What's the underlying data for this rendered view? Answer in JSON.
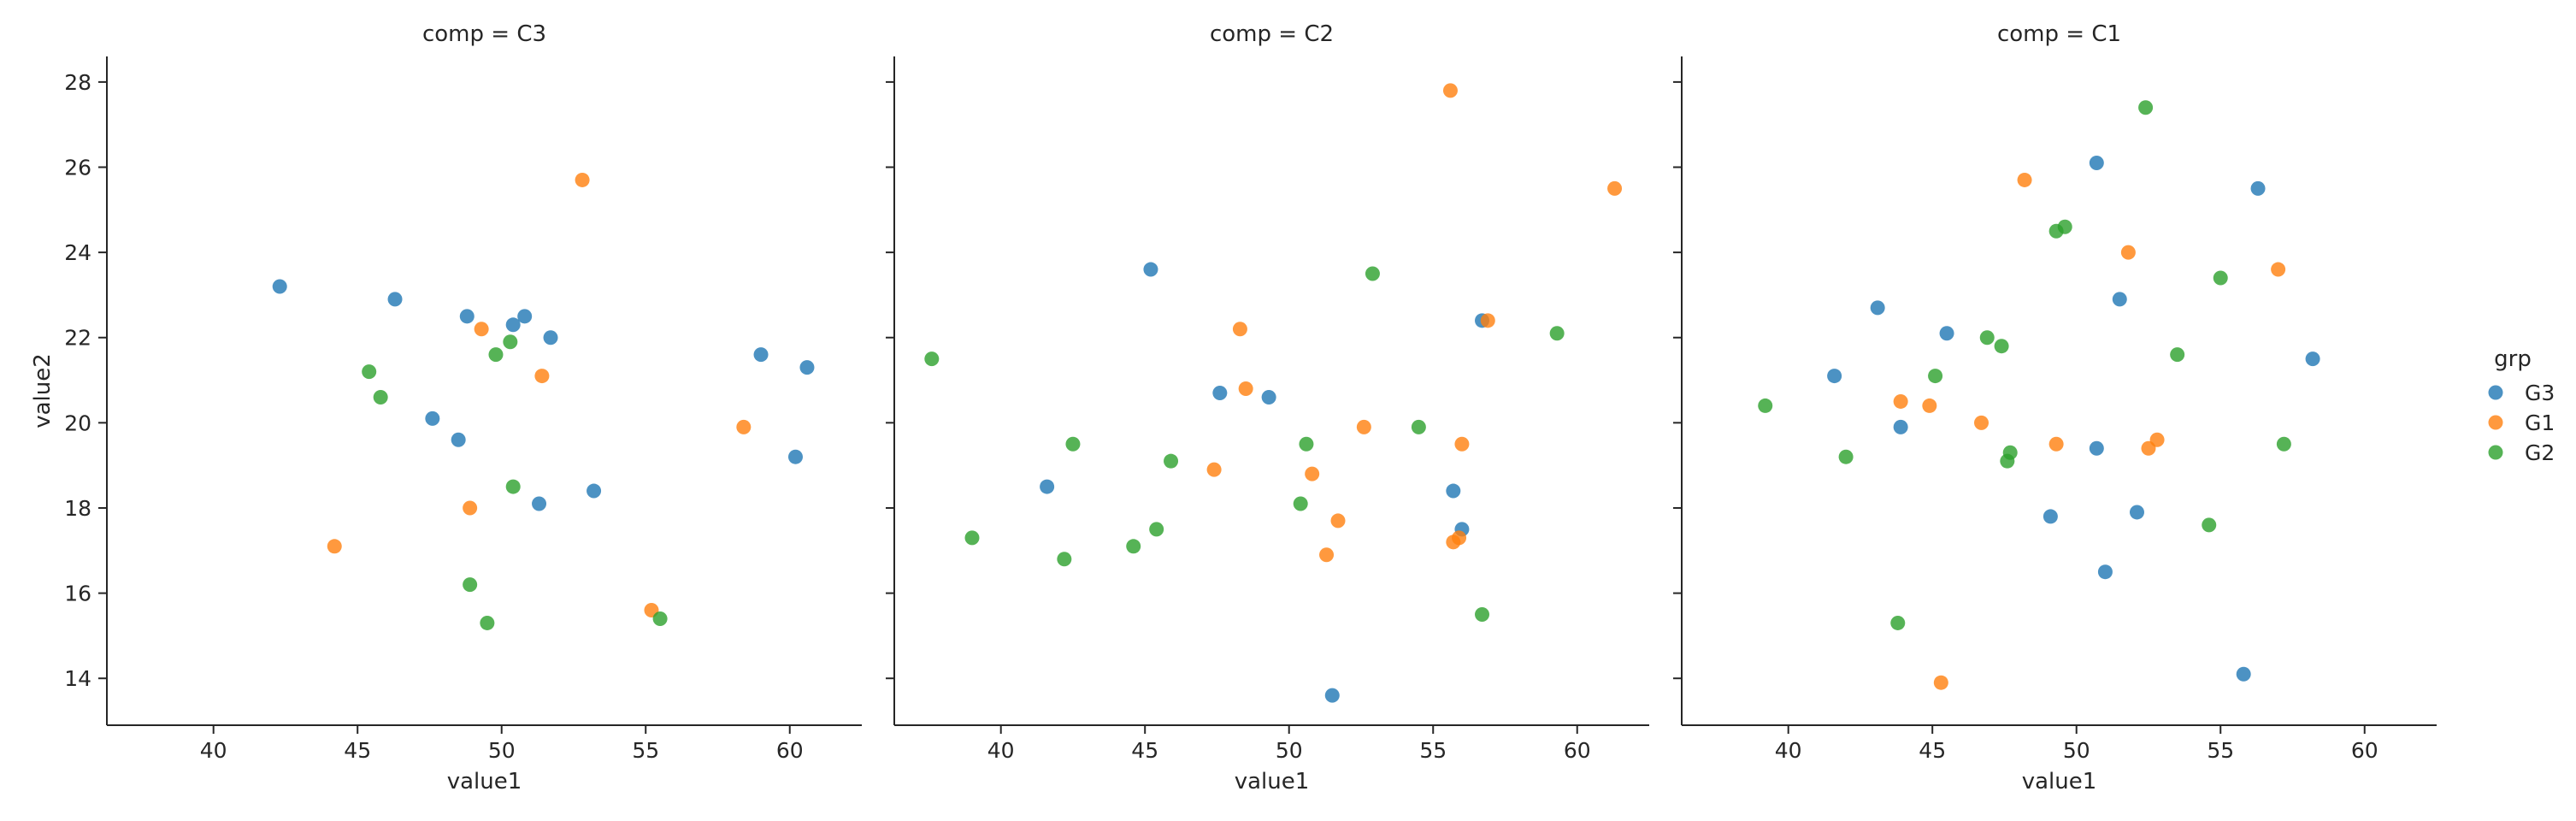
{
  "legend": {
    "title": "grp",
    "entries": [
      {
        "name": "G3",
        "color": "#1f77b4"
      },
      {
        "name": "G1",
        "color": "#ff7f0e"
      },
      {
        "name": "G2",
        "color": "#2ca02c"
      }
    ]
  },
  "chart_data": [
    {
      "type": "scatter",
      "title": "comp = C3",
      "xlabel": "value1",
      "ylabel": "value2",
      "xlim": [
        36.3,
        62.5
      ],
      "ylim": [
        12.9,
        28.6
      ],
      "xticks": [
        40,
        45,
        50,
        55,
        60
      ],
      "yticks": [
        14,
        16,
        18,
        20,
        22,
        24,
        26,
        28
      ],
      "grid": false,
      "series": [
        {
          "name": "G3",
          "color": "#1f77b4",
          "points": [
            [
              42.3,
              23.2
            ],
            [
              46.3,
              22.9
            ],
            [
              47.6,
              20.1
            ],
            [
              48.5,
              19.6
            ],
            [
              48.8,
              22.5
            ],
            [
              50.4,
              22.3
            ],
            [
              50.8,
              22.5
            ],
            [
              51.3,
              18.1
            ],
            [
              51.7,
              22.0
            ],
            [
              53.2,
              18.4
            ],
            [
              59.0,
              21.6
            ],
            [
              60.2,
              19.2
            ],
            [
              60.6,
              21.3
            ]
          ]
        },
        {
          "name": "G1",
          "color": "#ff7f0e",
          "points": [
            [
              44.2,
              17.1
            ],
            [
              48.9,
              18.0
            ],
            [
              49.3,
              22.2
            ],
            [
              51.4,
              21.1
            ],
            [
              52.8,
              25.7
            ],
            [
              55.2,
              15.6
            ],
            [
              58.4,
              19.9
            ]
          ]
        },
        {
          "name": "G2",
          "color": "#2ca02c",
          "points": [
            [
              45.4,
              21.2
            ],
            [
              45.8,
              20.6
            ],
            [
              48.9,
              16.2
            ],
            [
              49.5,
              15.3
            ],
            [
              49.8,
              21.6
            ],
            [
              50.3,
              21.9
            ],
            [
              50.4,
              18.5
            ],
            [
              55.5,
              15.4
            ]
          ]
        }
      ]
    },
    {
      "type": "scatter",
      "title": "comp = C2",
      "xlabel": "value1",
      "ylabel": "",
      "xlim": [
        36.3,
        62.5
      ],
      "ylim": [
        12.9,
        28.6
      ],
      "xticks": [
        40,
        45,
        50,
        55,
        60
      ],
      "yticks": [
        14,
        16,
        18,
        20,
        22,
        24,
        26,
        28
      ],
      "grid": false,
      "series": [
        {
          "name": "G3",
          "color": "#1f77b4",
          "points": [
            [
              41.6,
              18.5
            ],
            [
              45.2,
              23.6
            ],
            [
              47.6,
              20.7
            ],
            [
              49.3,
              20.6
            ],
            [
              51.5,
              13.6
            ],
            [
              55.7,
              18.4
            ],
            [
              56.0,
              17.5
            ],
            [
              56.7,
              22.4
            ]
          ]
        },
        {
          "name": "G1",
          "color": "#ff7f0e",
          "points": [
            [
              47.4,
              18.9
            ],
            [
              48.3,
              22.2
            ],
            [
              48.5,
              20.8
            ],
            [
              50.8,
              18.8
            ],
            [
              51.3,
              16.9
            ],
            [
              51.7,
              17.7
            ],
            [
              52.6,
              19.9
            ],
            [
              55.6,
              27.8
            ],
            [
              55.7,
              17.2
            ],
            [
              55.9,
              17.3
            ],
            [
              56.0,
              19.5
            ],
            [
              56.9,
              22.4
            ],
            [
              61.3,
              25.5
            ]
          ]
        },
        {
          "name": "G2",
          "color": "#2ca02c",
          "points": [
            [
              37.6,
              21.5
            ],
            [
              39.0,
              17.3
            ],
            [
              42.2,
              16.8
            ],
            [
              42.5,
              19.5
            ],
            [
              44.6,
              17.1
            ],
            [
              45.4,
              17.5
            ],
            [
              45.9,
              19.1
            ],
            [
              50.4,
              18.1
            ],
            [
              50.6,
              19.5
            ],
            [
              52.9,
              23.5
            ],
            [
              54.5,
              19.9
            ],
            [
              56.7,
              15.5
            ],
            [
              59.3,
              22.1
            ]
          ]
        }
      ]
    },
    {
      "type": "scatter",
      "title": "comp = C1",
      "xlabel": "value1",
      "ylabel": "",
      "xlim": [
        36.3,
        62.5
      ],
      "ylim": [
        12.9,
        28.6
      ],
      "xticks": [
        40,
        45,
        50,
        55,
        60
      ],
      "yticks": [
        14,
        16,
        18,
        20,
        22,
        24,
        26,
        28
      ],
      "grid": false,
      "series": [
        {
          "name": "G3",
          "color": "#1f77b4",
          "points": [
            [
              41.6,
              21.1
            ],
            [
              43.1,
              22.7
            ],
            [
              43.9,
              19.9
            ],
            [
              45.5,
              22.1
            ],
            [
              49.1,
              17.8
            ],
            [
              50.7,
              26.1
            ],
            [
              50.7,
              19.4
            ],
            [
              51.0,
              16.5
            ],
            [
              51.5,
              22.9
            ],
            [
              52.1,
              17.9
            ],
            [
              55.8,
              14.1
            ],
            [
              56.3,
              25.5
            ],
            [
              58.2,
              21.5
            ]
          ]
        },
        {
          "name": "G1",
          "color": "#ff7f0e",
          "points": [
            [
              43.9,
              20.5
            ],
            [
              44.9,
              20.4
            ],
            [
              45.3,
              13.9
            ],
            [
              46.7,
              20.0
            ],
            [
              48.2,
              25.7
            ],
            [
              49.3,
              19.5
            ],
            [
              51.8,
              24.0
            ],
            [
              52.5,
              19.4
            ],
            [
              52.8,
              19.6
            ],
            [
              57.0,
              23.6
            ]
          ]
        },
        {
          "name": "G2",
          "color": "#2ca02c",
          "points": [
            [
              39.2,
              20.4
            ],
            [
              42.0,
              19.2
            ],
            [
              43.8,
              15.3
            ],
            [
              45.1,
              21.1
            ],
            [
              46.9,
              22.0
            ],
            [
              47.4,
              21.8
            ],
            [
              47.6,
              19.1
            ],
            [
              47.7,
              19.3
            ],
            [
              49.3,
              24.5
            ],
            [
              49.6,
              24.6
            ],
            [
              52.4,
              27.4
            ],
            [
              53.5,
              21.6
            ],
            [
              54.6,
              17.6
            ],
            [
              55.0,
              23.4
            ],
            [
              57.2,
              19.5
            ]
          ]
        }
      ]
    }
  ]
}
